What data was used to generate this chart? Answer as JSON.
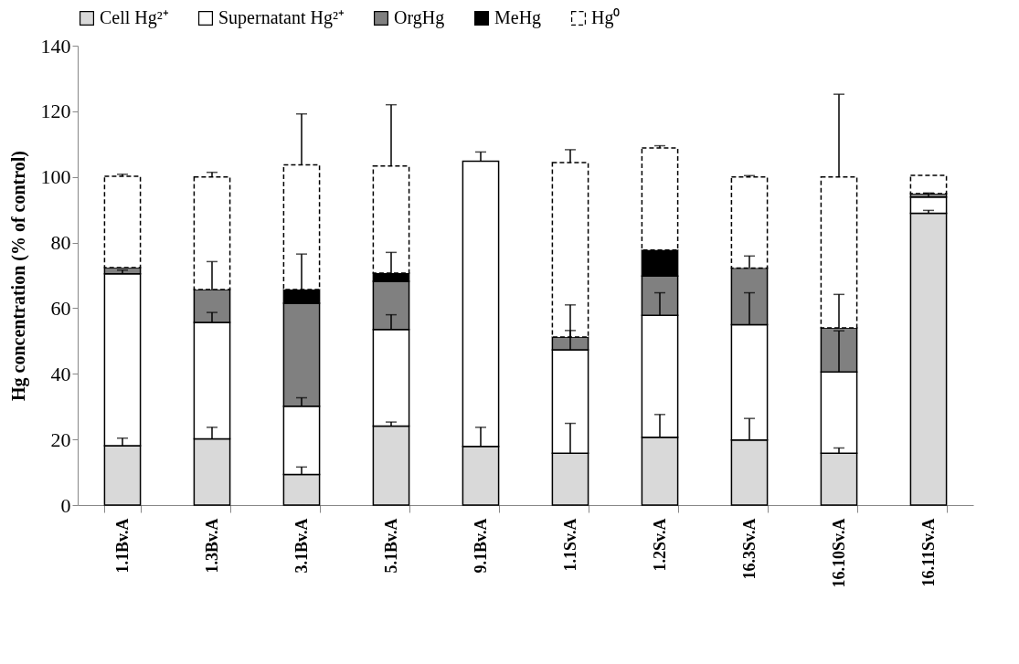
{
  "chart_data": {
    "type": "bar",
    "stacked": true,
    "ylabel": "Hg concentration (% of control)",
    "legend": "top",
    "ylim": [
      0,
      140
    ],
    "yticks": [
      0,
      20,
      40,
      60,
      80,
      100,
      120,
      140
    ],
    "categories": [
      "1.1Bv.A",
      "1.3Bv.A",
      "3.1Bv.A",
      "5.1Bv.A",
      "9.1Bv.A",
      "1.1Sv.A",
      "1.2Sv.A",
      "16.3Sv.A",
      "16.10Sv.A",
      "16.11Sv.A"
    ],
    "series": [
      {
        "name": "Cell Hg²⁺",
        "color": "#d9d9d9",
        "values": [
          18.1,
          20.2,
          9.3,
          24.1,
          17.9,
          15.8,
          20.7,
          19.8,
          15.8,
          88.9
        ],
        "errors": [
          [
            18.1,
            20.4
          ],
          [
            20.2,
            23.7
          ],
          [
            9.3,
            11.6
          ],
          [
            24.1,
            25.3
          ],
          [
            17.9,
            23.7
          ],
          [
            15.8,
            24.9
          ],
          [
            20.7,
            27.6
          ],
          [
            19.8,
            26.4
          ],
          [
            15.8,
            17.4
          ],
          [
            88.9,
            89.8
          ]
        ]
      },
      {
        "name": "Supernatant Hg²⁺",
        "color": "#ffffff",
        "values": [
          52.4,
          35.5,
          20.8,
          29.4,
          86.9,
          31.5,
          37.1,
          35.2,
          24.8,
          5.0
        ],
        "errors": [
          [
            70.5,
            71.6
          ],
          [
            55.7,
            58.7
          ],
          [
            30.1,
            32.7
          ],
          [
            53.5,
            58.0
          ],
          [
            104.8,
            107.6
          ],
          [
            47.3,
            53.2
          ],
          [
            57.8,
            64.7
          ],
          [
            55.0,
            64.7
          ],
          [
            40.6,
            53.1
          ],
          [
            93.9,
            95.1
          ]
        ]
      },
      {
        "name": "OrgHg",
        "color": "#808080",
        "values": [
          1.9,
          10.0,
          31.4,
          14.7,
          null,
          3.9,
          12.0,
          17.2,
          13.4,
          1.0
        ],
        "errors": [
          null,
          [
            65.7,
            74.2
          ],
          null,
          null,
          null,
          [
            51.2,
            61.0
          ],
          null,
          [
            72.2,
            75.9
          ],
          [
            54.0,
            64.2
          ],
          null
        ]
      },
      {
        "name": "MeHg",
        "color": "#000000",
        "values": [
          null,
          null,
          4.2,
          2.5,
          null,
          null,
          7.9,
          null,
          null,
          null
        ],
        "errors": [
          null,
          null,
          [
            65.7,
            76.5
          ],
          [
            70.7,
            77.0
          ],
          null,
          null,
          null,
          null,
          null,
          null
        ]
      },
      {
        "name": "Hg⁰",
        "color": "#ffffff",
        "line_style": "dashed",
        "values": [
          27.8,
          34.3,
          38.0,
          32.6,
          null,
          53.2,
          31.1,
          27.8,
          46.0,
          5.6
        ],
        "errors": [
          [
            100.2,
            100.8
          ],
          [
            100.0,
            101.4
          ],
          [
            103.7,
            119.2
          ],
          [
            103.3,
            122.0
          ],
          null,
          [
            104.4,
            108.3
          ],
          [
            108.8,
            109.5
          ],
          [
            100.0,
            100.4
          ],
          [
            100.0,
            125.2
          ],
          null
        ]
      }
    ]
  }
}
